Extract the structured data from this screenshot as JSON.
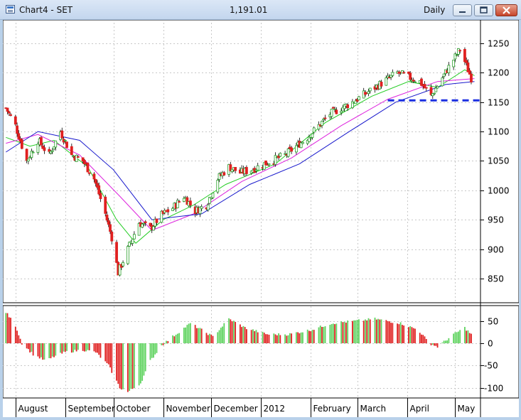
{
  "window": {
    "title": "Chart4 - SET",
    "last_value": "1,191.01",
    "periodicity": "Daily"
  },
  "price_axis": {
    "ticks": [
      "1250",
      "1200",
      "1150",
      "1100",
      "1050",
      "1000",
      "950",
      "900",
      "850"
    ]
  },
  "oscillator_axis": {
    "ticks": [
      "50",
      "0",
      "-50",
      "-100"
    ]
  },
  "date_axis": {
    "ticks": [
      "August",
      "September",
      "October",
      "November",
      "December",
      "2012",
      "February",
      "March",
      "April",
      "May"
    ]
  },
  "colors": {
    "up": "#2aa02a",
    "down": "#e02020",
    "ma_fast": "#22cc22",
    "ma_mid": "#dd22dd",
    "ma_slow": "#1818cc",
    "support": "#1a2ee0",
    "grid": "#c8c8c8"
  },
  "chart_data": [
    {
      "type": "candlestick",
      "title": "SET",
      "periodicity": "Daily",
      "ylim": [
        810,
        1285
      ],
      "xlim": [
        "2011-07-25",
        "2012-05-15"
      ],
      "x_labels": [
        "August",
        "September",
        "October",
        "November",
        "December",
        "2012",
        "February",
        "March",
        "April",
        "May"
      ],
      "support_level": 1153,
      "close_path": [
        [
          "2011-07-26",
          1140
        ],
        [
          "2011-08-01",
          1110
        ],
        [
          "2011-08-08",
          1050
        ],
        [
          "2011-08-15",
          1085
        ],
        [
          "2011-08-22",
          1060
        ],
        [
          "2011-08-29",
          1100
        ],
        [
          "2011-09-05",
          1060
        ],
        [
          "2011-09-12",
          1050
        ],
        [
          "2011-09-19",
          1020
        ],
        [
          "2011-09-26",
          960
        ],
        [
          "2011-09-30",
          920
        ],
        [
          "2011-10-04",
          860
        ],
        [
          "2011-10-10",
          900
        ],
        [
          "2011-10-17",
          945
        ],
        [
          "2011-10-24",
          935
        ],
        [
          "2011-10-31",
          958
        ],
        [
          "2011-11-07",
          970
        ],
        [
          "2011-11-14",
          990
        ],
        [
          "2011-11-21",
          965
        ],
        [
          "2011-11-28",
          975
        ],
        [
          "2011-12-05",
          1020
        ],
        [
          "2011-12-12",
          1040
        ],
        [
          "2011-12-19",
          1030
        ],
        [
          "2011-12-26",
          1035
        ],
        [
          "2012-01-03",
          1045
        ],
        [
          "2012-01-16",
          1060
        ],
        [
          "2012-01-30",
          1090
        ],
        [
          "2012-02-13",
          1130
        ],
        [
          "2012-02-27",
          1150
        ],
        [
          "2012-03-12",
          1175
        ],
        [
          "2012-03-26",
          1200
        ],
        [
          "2012-04-09",
          1185
        ],
        [
          "2012-04-16",
          1160
        ],
        [
          "2012-04-26",
          1205
        ],
        [
          "2012-05-04",
          1240
        ],
        [
          "2012-05-11",
          1191
        ]
      ],
      "series": [
        {
          "role": "ma_fast",
          "color": "#22cc22",
          "points": [
            [
              "2011-07-26",
              1090
            ],
            [
              "2011-08-10",
              1075
            ],
            [
              "2011-08-25",
              1085
            ],
            [
              "2011-09-15",
              1040
            ],
            [
              "2011-10-03",
              950
            ],
            [
              "2011-10-15",
              910
            ],
            [
              "2011-11-01",
              950
            ],
            [
              "2011-11-20",
              975
            ],
            [
              "2011-12-10",
              1010
            ],
            [
              "2012-01-10",
              1045
            ],
            [
              "2012-02-10",
              1115
            ],
            [
              "2012-03-10",
              1160
            ],
            [
              "2012-04-02",
              1185
            ],
            [
              "2012-04-20",
              1175
            ],
            [
              "2012-05-07",
              1205
            ],
            [
              "2012-05-13",
              1195
            ]
          ]
        },
        {
          "role": "ma_mid",
          "color": "#dd22dd",
          "points": [
            [
              "2011-07-26",
              1080
            ],
            [
              "2011-08-15",
              1095
            ],
            [
              "2011-09-10",
              1060
            ],
            [
              "2011-10-05",
              990
            ],
            [
              "2011-10-25",
              932
            ],
            [
              "2011-11-20",
              960
            ],
            [
              "2011-12-20",
              1015
            ],
            [
              "2012-01-20",
              1055
            ],
            [
              "2012-02-20",
              1110
            ],
            [
              "2012-03-20",
              1155
            ],
            [
              "2012-04-20",
              1185
            ],
            [
              "2012-05-13",
              1190
            ]
          ]
        },
        {
          "role": "ma_slow",
          "color": "#1818cc",
          "points": [
            [
              "2011-07-26",
              1065
            ],
            [
              "2011-08-15",
              1100
            ],
            [
              "2011-09-10",
              1085
            ],
            [
              "2011-10-01",
              1035
            ],
            [
              "2011-10-25",
              950
            ],
            [
              "2011-11-25",
              960
            ],
            [
              "2011-12-25",
              1010
            ],
            [
              "2012-01-25",
              1045
            ],
            [
              "2012-02-25",
              1100
            ],
            [
              "2012-03-25",
              1150
            ],
            [
              "2012-04-25",
              1180
            ],
            [
              "2012-05-13",
              1185
            ]
          ]
        }
      ]
    },
    {
      "type": "bar",
      "ylim": [
        -120,
        80
      ],
      "x_labels": [
        "August",
        "September",
        "October",
        "November",
        "December",
        "2012",
        "February",
        "March",
        "April",
        "May"
      ],
      "dates": [
        "2011-07-26",
        "2011-08-01",
        "2011-08-05",
        "2011-08-12",
        "2011-08-20",
        "2011-08-25",
        "2011-09-01",
        "2011-09-12",
        "2011-09-20",
        "2011-09-28",
        "2011-10-05",
        "2011-10-10",
        "2011-10-18",
        "2011-10-24",
        "2011-10-31",
        "2011-11-07",
        "2011-11-18",
        "2011-11-25",
        "2011-12-02",
        "2011-12-12",
        "2011-12-22",
        "2012-01-05",
        "2012-01-18",
        "2012-02-01",
        "2012-02-14",
        "2012-02-28",
        "2012-03-12",
        "2012-03-28",
        "2012-04-08",
        "2012-04-15",
        "2012-04-20",
        "2012-04-30",
        "2012-05-07",
        "2012-05-13"
      ],
      "values": [
        70,
        40,
        0,
        -25,
        -40,
        -30,
        -20,
        -15,
        -20,
        -50,
        -100,
        -110,
        -90,
        -40,
        -5,
        15,
        45,
        30,
        15,
        55,
        35,
        20,
        20,
        30,
        45,
        50,
        55,
        45,
        30,
        0,
        -8,
        20,
        35,
        12
      ]
    }
  ]
}
